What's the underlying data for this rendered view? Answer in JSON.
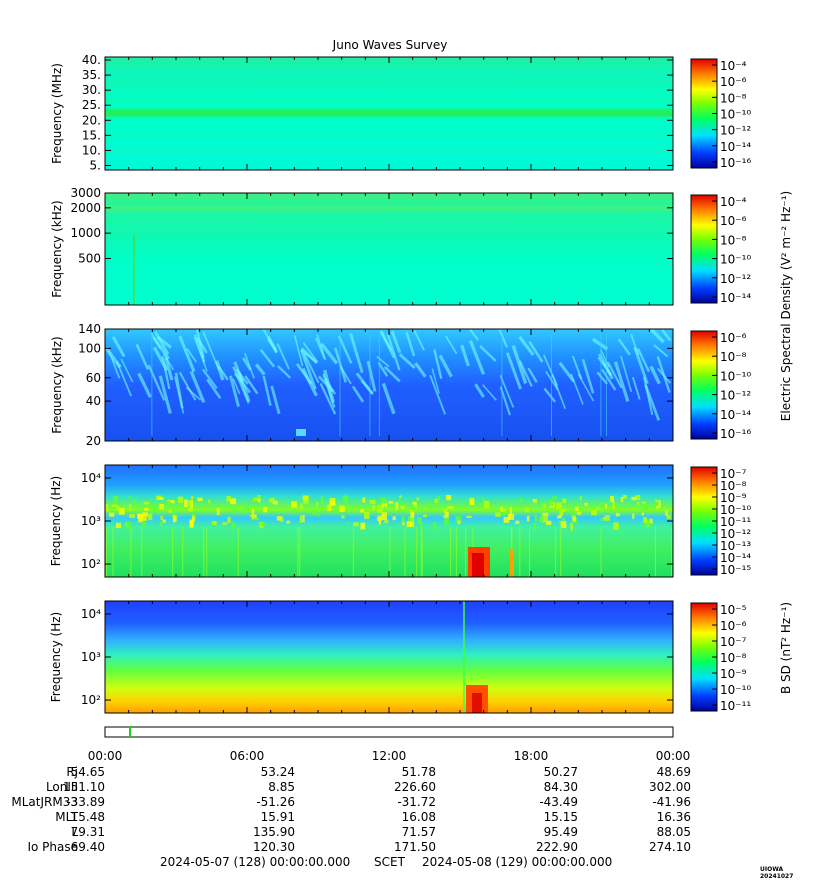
{
  "title": "Juno Waves Survey",
  "stamp": "UIOWA 20241027",
  "footer": {
    "start": "2024-05-07 (128) 00:00:00.000",
    "scet": "SCET",
    "end": "2024-05-08 (129) 00:00:00.000"
  },
  "time_ticks": [
    "00:00",
    "06:00",
    "12:00",
    "18:00",
    "00:00"
  ],
  "colorbar_titles": {
    "electric": "Electric Spectral Density (V² m⁻² Hz⁻¹)",
    "magnetic": "B SD (nT² Hz⁻¹)"
  },
  "ephemeris": {
    "labels": [
      "Rj",
      "LonIII",
      "MLatJRM33",
      "MLT",
      "L",
      "Io Phase"
    ],
    "rows": [
      [
        "54.65",
        "53.24",
        "51.78",
        "50.27",
        "48.69"
      ],
      [
        "151.10",
        "8.85",
        "226.60",
        "84.30",
        "302.00"
      ],
      [
        "-33.89",
        "-51.26",
        "-31.72",
        "-43.49",
        "-41.96"
      ],
      [
        "15.48",
        "15.91",
        "16.08",
        "15.15",
        "16.36"
      ],
      [
        "79.31",
        "135.90",
        "71.57",
        "95.49",
        "88.05"
      ],
      [
        "69.40",
        "120.30",
        "171.50",
        "222.90",
        "274.10"
      ]
    ]
  },
  "chart_data": [
    {
      "type": "heatmap",
      "title": "Juno Waves Survey",
      "ylabel": "Frequency (MHz)",
      "yscale": "linear",
      "ylim": [
        3.5,
        41
      ],
      "yticks": [
        "40.",
        "35.",
        "30.",
        "25.",
        "20.",
        "15.",
        "10.",
        "5."
      ],
      "colorbar": {
        "ticks": [
          "10⁻⁴",
          "10⁻⁶",
          "10⁻⁸",
          "10⁻¹⁰",
          "10⁻¹²",
          "10⁻¹⁴",
          "10⁻¹⁶"
        ]
      }
    },
    {
      "type": "heatmap",
      "ylabel": "Frequency (kHz)",
      "yscale": "log",
      "ylim": [
        140,
        3000
      ],
      "yticks": [
        "3000",
        "2000",
        "1000",
        "500"
      ],
      "colorbar": {
        "ticks": [
          "10⁻⁴",
          "10⁻⁶",
          "10⁻⁸",
          "10⁻¹⁰",
          "10⁻¹²",
          "10⁻¹⁴"
        ]
      }
    },
    {
      "type": "heatmap",
      "ylabel": "Frequency (kHz)",
      "yscale": "log",
      "ylim": [
        20,
        140
      ],
      "yticks": [
        "140",
        "100",
        "60",
        "40",
        "20"
      ],
      "colorbar": {
        "ticks": [
          "10⁻⁶",
          "10⁻⁸",
          "10⁻¹⁰",
          "10⁻¹²",
          "10⁻¹⁴",
          "10⁻¹⁶"
        ]
      }
    },
    {
      "type": "heatmap",
      "ylabel": "Frequency (Hz)",
      "yscale": "log",
      "ylim": [
        50,
        20000
      ],
      "yticks": [
        "10⁴",
        "10³",
        "10²"
      ],
      "colorbar": {
        "ticks": [
          "10⁻⁷",
          "10⁻⁸",
          "10⁻⁹",
          "10⁻¹⁰",
          "10⁻¹¹",
          "10⁻¹²",
          "10⁻¹³",
          "10⁻¹⁴",
          "10⁻¹⁵"
        ]
      }
    },
    {
      "type": "heatmap",
      "ylabel": "Frequency (Hz)",
      "yscale": "log",
      "ylim": [
        50,
        20000
      ],
      "yticks": [
        "10⁴",
        "10³",
        "10²"
      ],
      "colorbar": {
        "ticks": [
          "10⁻⁵",
          "10⁻⁶",
          "10⁻⁷",
          "10⁻⁸",
          "10⁻⁹",
          "10⁻¹⁰",
          "10⁻¹¹"
        ]
      }
    }
  ]
}
